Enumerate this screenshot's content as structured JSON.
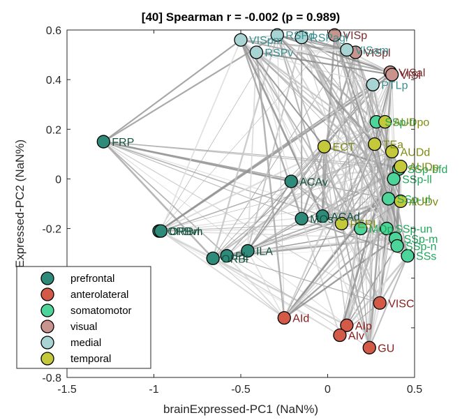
{
  "chart_data": {
    "type": "scatter",
    "title": "[40] Spearman r = -0.002 (p = 0.989)",
    "xlabel": "brainExpressed-PC1 (NaN%)",
    "ylabel": "Expressed-PC2 (NaN%)",
    "xlim": [
      -1.5,
      0.5
    ],
    "ylim": [
      -0.8,
      0.6
    ],
    "xticks": [
      "-1.5",
      "-1",
      "-0.5",
      "0",
      "0.5"
    ],
    "yticks": [
      "-0.8",
      "-0.6",
      "-0.4",
      "-0.2",
      "0",
      "0.2",
      "0.4",
      "0.6"
    ],
    "grid": false,
    "legend_position": "bottom-left",
    "groups": [
      {
        "name": "prefrontal",
        "color": "#2e8b7a",
        "text_color": "#14523f"
      },
      {
        "name": "anterolateral",
        "color": "#d45a48",
        "text_color": "#8b1a1a"
      },
      {
        "name": "somatomotor",
        "color": "#4dd49a",
        "text_color": "#1fa85a"
      },
      {
        "name": "visual",
        "color": "#c9948e",
        "text_color": "#7a2a2a"
      },
      {
        "name": "medial",
        "color": "#a8d4d4",
        "text_color": "#3a8f8f"
      },
      {
        "name": "temporal",
        "color": "#c4c93c",
        "text_color": "#7f8a10"
      }
    ],
    "points": [
      {
        "label": "FRP",
        "x": -1.29,
        "y": 0.15,
        "group": 0
      },
      {
        "label": "ORBvl",
        "x": -0.97,
        "y": -0.21,
        "group": 0
      },
      {
        "label": "ORBm",
        "x": -0.96,
        "y": -0.21,
        "group": 0
      },
      {
        "label": "ORBl",
        "x": -0.66,
        "y": -0.32,
        "group": 0
      },
      {
        "label": "PL",
        "x": -0.58,
        "y": -0.31,
        "group": 0
      },
      {
        "label": "ILA",
        "x": -0.46,
        "y": -0.29,
        "group": 0
      },
      {
        "label": "ACAv",
        "x": -0.21,
        "y": -0.01,
        "group": 0
      },
      {
        "label": "ACAd",
        "x": -0.03,
        "y": -0.15,
        "group": 0
      },
      {
        "label": "MOs",
        "x": -0.15,
        "y": -0.16,
        "group": 0
      },
      {
        "label": "VISC",
        "x": 0.3,
        "y": -0.5,
        "group": 1
      },
      {
        "label": "AId",
        "x": -0.25,
        "y": -0.56,
        "group": 1
      },
      {
        "label": "AIp",
        "x": 0.11,
        "y": -0.59,
        "group": 1
      },
      {
        "label": "AIv",
        "x": 0.07,
        "y": -0.63,
        "group": 1
      },
      {
        "label": "GU",
        "x": 0.24,
        "y": -0.68,
        "group": 1
      },
      {
        "label": "SSp-bfd",
        "x": 0.41,
        "y": 0.04,
        "group": 2
      },
      {
        "label": "SSp-tr",
        "x": 0.28,
        "y": 0.23,
        "group": 2
      },
      {
        "label": "SSp-ll",
        "x": 0.38,
        "y": 0.0,
        "group": 2
      },
      {
        "label": "SSp-ul",
        "x": 0.35,
        "y": -0.08,
        "group": 2
      },
      {
        "label": "SSp-un",
        "x": 0.34,
        "y": -0.2,
        "group": 2
      },
      {
        "label": "SSp-m",
        "x": 0.39,
        "y": -0.24,
        "group": 2
      },
      {
        "label": "SSp-n",
        "x": 0.4,
        "y": -0.27,
        "group": 2
      },
      {
        "label": "SSs",
        "x": 0.46,
        "y": -0.31,
        "group": 2
      },
      {
        "label": "MOp",
        "x": 0.19,
        "y": -0.2,
        "group": 2
      },
      {
        "label": "VISp",
        "x": 0.04,
        "y": 0.58,
        "group": 3
      },
      {
        "label": "VISpl",
        "x": 0.16,
        "y": 0.51,
        "group": 3
      },
      {
        "label": "VISal",
        "x": 0.36,
        "y": 0.43,
        "group": 3
      },
      {
        "label": "VISl",
        "x": 0.37,
        "y": 0.42,
        "group": 3
      },
      {
        "label": "VISpm",
        "x": -0.5,
        "y": 0.56,
        "group": 4
      },
      {
        "label": "RSPd",
        "x": -0.29,
        "y": 0.58,
        "group": 4
      },
      {
        "label": "RSPv",
        "x": -0.41,
        "y": 0.51,
        "group": 4
      },
      {
        "label": "RSPagl",
        "x": -0.15,
        "y": 0.57,
        "group": 4
      },
      {
        "label": "VISam",
        "x": 0.11,
        "y": 0.52,
        "group": 4
      },
      {
        "label": "PTLp",
        "x": 0.26,
        "y": 0.38,
        "group": 4
      },
      {
        "label": "ECT",
        "x": -0.02,
        "y": 0.13,
        "group": 5
      },
      {
        "label": "TEa",
        "x": 0.27,
        "y": 0.14,
        "group": 5
      },
      {
        "label": "AUDpo",
        "x": 0.33,
        "y": 0.23,
        "group": 5
      },
      {
        "label": "AUDd",
        "x": 0.37,
        "y": 0.11,
        "group": 5
      },
      {
        "label": "AUDp",
        "x": 0.42,
        "y": 0.05,
        "group": 5
      },
      {
        "label": "AUDv",
        "x": 0.42,
        "y": -0.09,
        "group": 5
      },
      {
        "label": "PERI",
        "x": 0.08,
        "y": -0.18,
        "group": 5
      }
    ],
    "legend_entries": [
      "prefrontal",
      "anterolateral",
      "somatomotor",
      "visual",
      "medial",
      "temporal"
    ]
  }
}
